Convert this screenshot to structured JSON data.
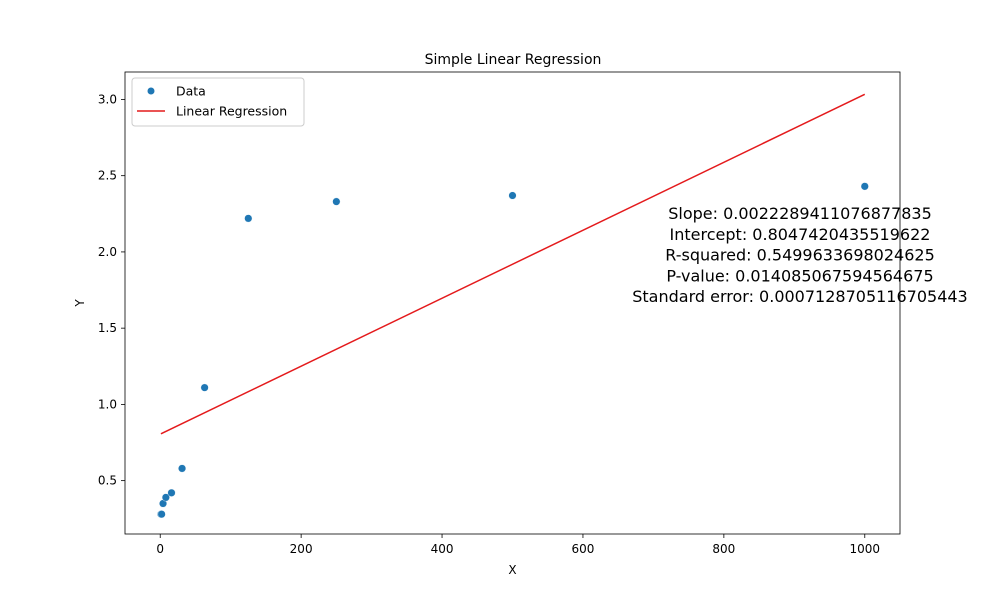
{
  "chart_data": {
    "type": "scatter",
    "title": "Simple Linear Regression",
    "xlabel": "X",
    "ylabel": "Y",
    "xlim": [
      -50,
      1050
    ],
    "ylim": [
      0.15,
      3.18
    ],
    "xticks": [
      0,
      200,
      400,
      600,
      800,
      1000
    ],
    "yticks": [
      0.5,
      1.0,
      1.5,
      2.0,
      2.5,
      3.0
    ],
    "xtick_labels": [
      "0",
      "200",
      "400",
      "600",
      "800",
      "1000"
    ],
    "ytick_labels": [
      "0.5",
      "1.0",
      "1.5",
      "2.0",
      "2.5",
      "3.0"
    ],
    "grid": false,
    "legend_position": "top-left",
    "series": [
      {
        "name": "Data",
        "kind": "scatter",
        "color": "#1f77b4",
        "x": [
          1,
          2,
          4,
          8,
          16,
          31,
          63,
          125,
          250,
          500,
          1000
        ],
        "y": [
          0.28,
          0.28,
          0.35,
          0.39,
          0.42,
          0.58,
          1.11,
          2.22,
          2.33,
          2.37,
          2.43
        ]
      },
      {
        "name": "Linear Regression",
        "kind": "line",
        "color": "#e41a1c",
        "slope": 0.0022289411076877835,
        "intercept": 0.8047420435519622,
        "x_range": [
          1,
          1000
        ]
      }
    ],
    "annotations": [
      "Slope: 0.0022289411076877835",
      "Intercept: 0.8047420435519622",
      "R-squared: 0.5499633698024625",
      "P-value: 0.014085067594564675",
      "Standard error: 0.0007128705116705443"
    ]
  }
}
